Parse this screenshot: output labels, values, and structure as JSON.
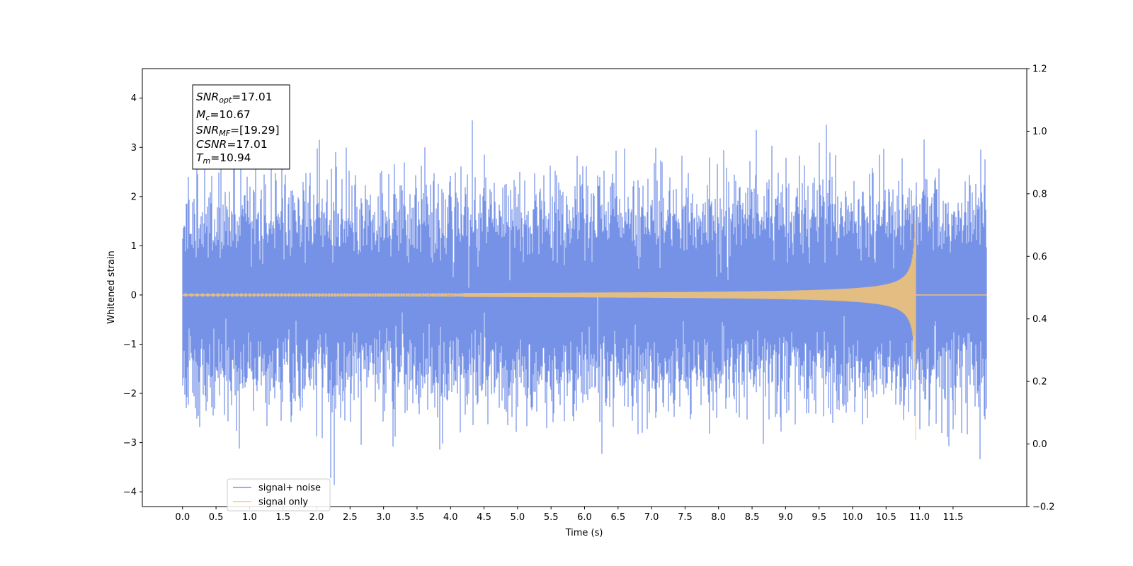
{
  "chart_data": {
    "type": "line",
    "xlabel": "Time (s)",
    "ylabel": "Whitened strain",
    "xlim": [
      -0.6,
      12.6
    ],
    "ylim": [
      -4.3,
      4.6
    ],
    "y2lim": [
      -0.2,
      1.2
    ],
    "x_ticks": [
      "0.0",
      "0.5",
      "1.0",
      "1.5",
      "2.0",
      "2.5",
      "3.0",
      "3.5",
      "4.0",
      "4.5",
      "5.0",
      "5.5",
      "6.0",
      "6.5",
      "7.0",
      "7.5",
      "8.0",
      "8.5",
      "9.0",
      "9.5",
      "10.0",
      "10.5",
      "11.0",
      "11.5"
    ],
    "y_ticks": [
      "4",
      "3",
      "2",
      "1",
      "0",
      "−1",
      "−2",
      "−3",
      "−4"
    ],
    "y2_ticks": [
      "1.2",
      "1.0",
      "0.8",
      "0.6",
      "0.4",
      "0.2",
      "0.0",
      "−0.2"
    ],
    "grid": false,
    "legend_position": "lower-left",
    "series": [
      {
        "name": "signal+ noise",
        "color": "#7692e6",
        "t_start": 0.0,
        "t_end": 12.0,
        "noise_std": 0.95,
        "approx_max": 4.22,
        "approx_min": -3.86
      },
      {
        "name": "signal only",
        "color": "#ffc868",
        "t_start": 0.0,
        "t_end": 12.0,
        "merger_time": 10.94,
        "peak_amplitude": 2.0,
        "early_amplitude": 0.03
      }
    ],
    "annotation": {
      "snr_opt": {
        "sym": "SNR",
        "sub": "opt",
        "value": "=17.01"
      },
      "mc": {
        "sym": "M",
        "sub": "c",
        "value": "=10.67"
      },
      "snr_mf": {
        "sym": "SNR",
        "sub": "MF",
        "value": "=[19.29]"
      },
      "csnr": {
        "sym": "CSNR",
        "sub": "",
        "value": "=17.01"
      },
      "tm": {
        "sym": "T",
        "sub": "m",
        "value": "=10.94"
      }
    }
  }
}
